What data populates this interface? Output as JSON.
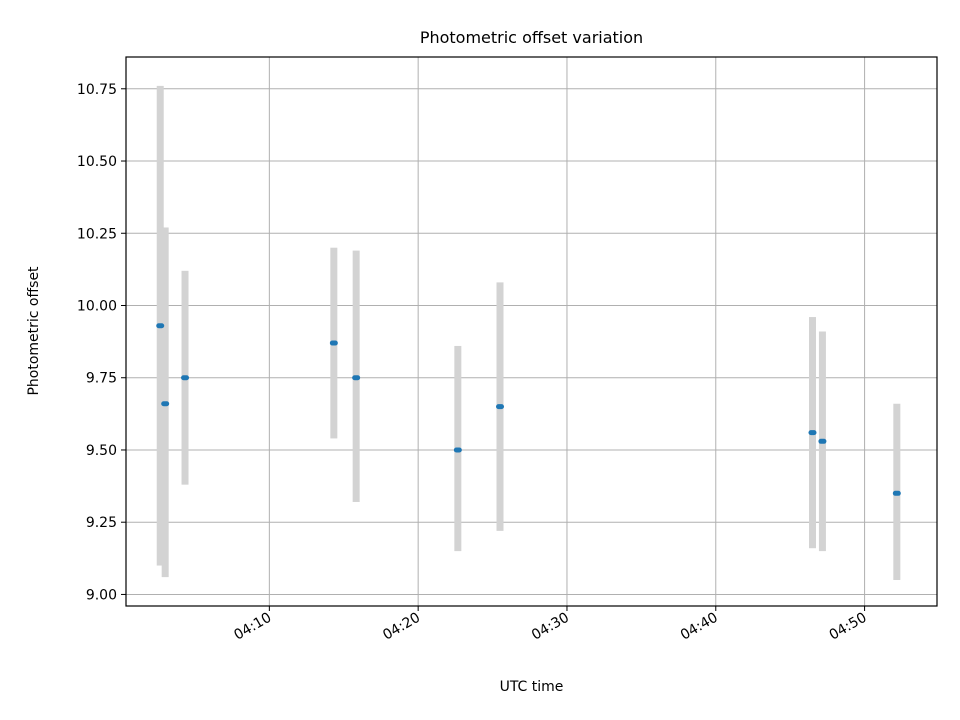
{
  "chart_data": {
    "type": "scatter",
    "title": "Photometric offset variation",
    "xlabel": "UTC time",
    "ylabel": "Photometric offset",
    "x_type": "time",
    "xlim": [
      "04:00:22",
      "04:54:52"
    ],
    "ylim": [
      8.96,
      10.86
    ],
    "xticks": [
      "04:10",
      "04:20",
      "04:30",
      "04:40",
      "04:50"
    ],
    "yticks": [
      9.0,
      9.25,
      9.5,
      9.75,
      10.0,
      10.25,
      10.5,
      10.75
    ],
    "ytick_labels": [
      "9.00",
      "9.25",
      "9.50",
      "9.75",
      "10.00",
      "10.25",
      "10.50",
      "10.75"
    ],
    "grid": true,
    "point_color": "#1f77b4",
    "errorbar_color": "#d3d3d3",
    "points": [
      {
        "x": "04:02:40",
        "y": 9.93,
        "yerr_low": 9.1,
        "yerr_high": 10.76
      },
      {
        "x": "04:03:00",
        "y": 9.66,
        "yerr_low": 9.06,
        "yerr_high": 10.27
      },
      {
        "x": "04:04:20",
        "y": 9.75,
        "yerr_low": 9.38,
        "yerr_high": 10.12
      },
      {
        "x": "04:14:20",
        "y": 9.87,
        "yerr_low": 9.54,
        "yerr_high": 10.2
      },
      {
        "x": "04:15:50",
        "y": 9.75,
        "yerr_low": 9.32,
        "yerr_high": 10.19
      },
      {
        "x": "04:22:40",
        "y": 9.5,
        "yerr_low": 9.15,
        "yerr_high": 9.86
      },
      {
        "x": "04:25:30",
        "y": 9.65,
        "yerr_low": 9.22,
        "yerr_high": 10.08
      },
      {
        "x": "04:46:30",
        "y": 9.56,
        "yerr_low": 9.16,
        "yerr_high": 9.96
      },
      {
        "x": "04:47:10",
        "y": 9.53,
        "yerr_low": 9.15,
        "yerr_high": 9.91
      },
      {
        "x": "04:52:10",
        "y": 9.35,
        "yerr_low": 9.05,
        "yerr_high": 9.66
      }
    ]
  }
}
